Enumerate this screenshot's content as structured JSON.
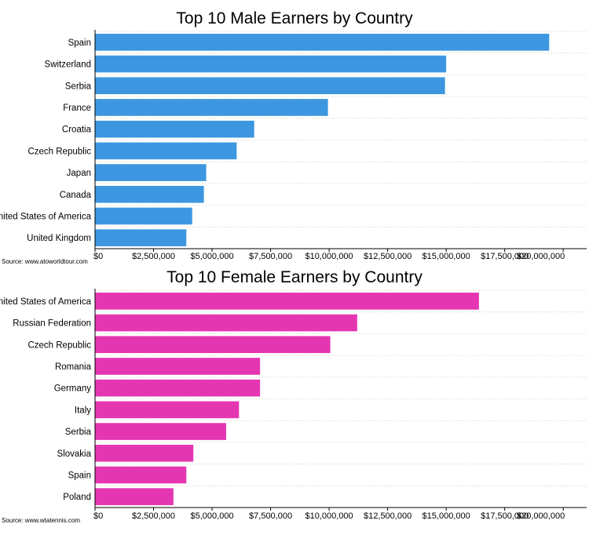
{
  "chart_data": [
    {
      "type": "bar",
      "orientation": "horizontal",
      "title": "Top 10 Male Earners by Country",
      "source": "Source: www.atoworldtour.com",
      "bar_color": "#3d97e0",
      "categories": [
        "Spain",
        "Switzerland",
        "Serbia",
        "France",
        "Croatia",
        "Czech Republic",
        "Japan",
        "Canada",
        "United States of America",
        "United Kingdom"
      ],
      "values": [
        19400000,
        15000000,
        14950000,
        9950000,
        6800000,
        6050000,
        4750000,
        4650000,
        4150000,
        3900000
      ],
      "xlim": [
        0,
        21000000
      ],
      "xticks": [
        0,
        2500000,
        5000000,
        7500000,
        10000000,
        12500000,
        15000000,
        17500000,
        20000000
      ],
      "xtick_labels": [
        "$0",
        "$2,500,000",
        "$5,000,000",
        "$7,500,000",
        "$10,000,000",
        "$12,500,000",
        "$15,000,000",
        "$17,500,000",
        "$20,000,000"
      ],
      "grid": true,
      "legend": false
    },
    {
      "type": "bar",
      "orientation": "horizontal",
      "title": "Top 10 Female Earners by Country",
      "source": "Source: www.wtatennis.com",
      "bar_color": "#e536b2",
      "categories": [
        "United States of America",
        "Russian Federation",
        "Czech Republic",
        "Romania",
        "Germany",
        "Italy",
        "Serbia",
        "Slovakia",
        "Spain",
        "Poland"
      ],
      "values": [
        16400000,
        11200000,
        10050000,
        7050000,
        7050000,
        6150000,
        5600000,
        4200000,
        3900000,
        3350000
      ],
      "xlim": [
        0,
        21000000
      ],
      "xticks": [
        0,
        2500000,
        5000000,
        7500000,
        10000000,
        12500000,
        15000000,
        17500000,
        20000000
      ],
      "xtick_labels": [
        "$0",
        "$2,500,000",
        "$5,000,000",
        "$7,500,000",
        "$10,000,000",
        "$12,500,000",
        "$15,000,000",
        "$17,500,000",
        "$20,000,000"
      ],
      "grid": true,
      "legend": false
    }
  ]
}
